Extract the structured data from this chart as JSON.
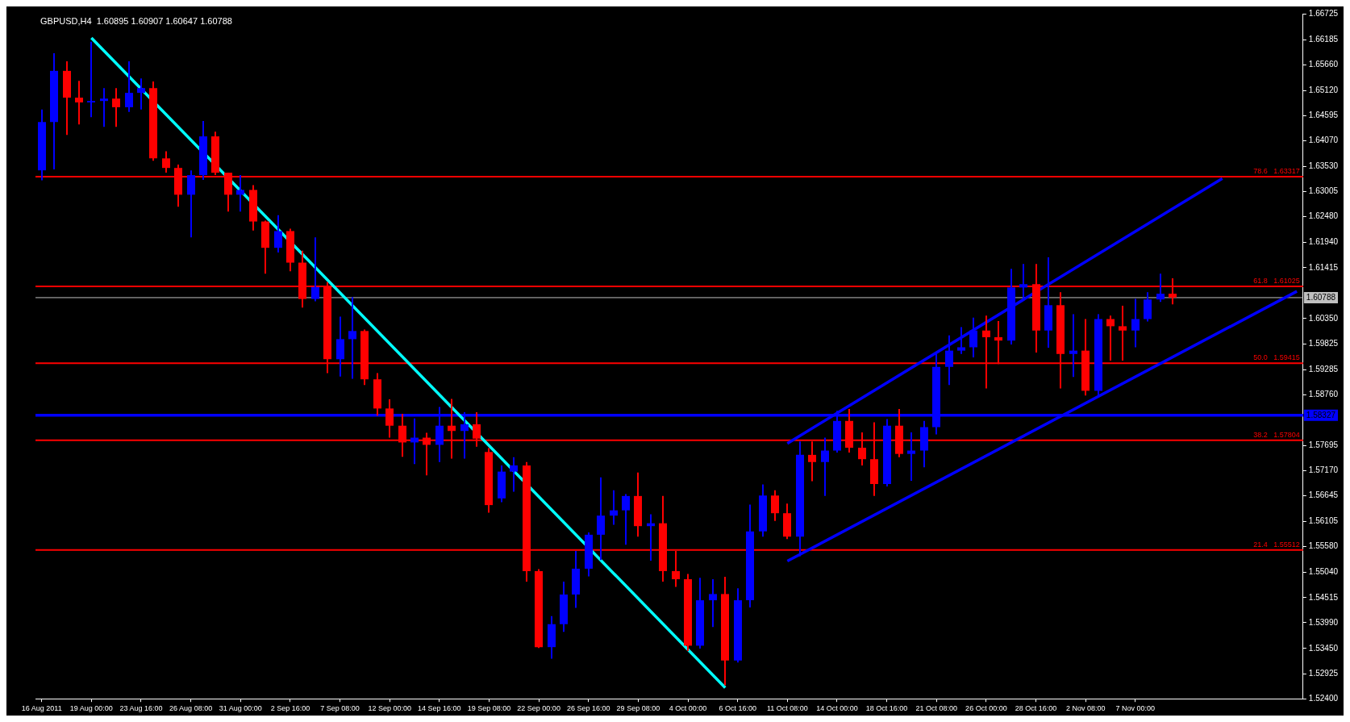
{
  "chart_data": {
    "type": "candlestick",
    "title": "GBPUSD,H4  1.60895 1.60907 1.60647 1.60788",
    "categories": [
      "16 Aug 2011",
      null,
      null,
      null,
      "19 Aug 00:00",
      null,
      null,
      null,
      "23 Aug 16:00",
      null,
      null,
      null,
      "26 Aug 08:00",
      null,
      null,
      null,
      "31 Aug 00:00",
      null,
      null,
      null,
      "2 Sep 16:00",
      null,
      null,
      null,
      "7 Sep 08:00",
      null,
      null,
      null,
      "12 Sep 00:00",
      null,
      null,
      null,
      "14 Sep 16:00",
      null,
      null,
      null,
      "19 Sep 08:00",
      null,
      null,
      null,
      "22 Sep 00:00",
      null,
      null,
      null,
      "26 Sep 16:00",
      null,
      null,
      null,
      "29 Sep 08:00",
      null,
      null,
      null,
      "4 Oct 00:00",
      null,
      null,
      null,
      "6 Oct 16:00",
      null,
      null,
      null,
      "11 Oct 08:00",
      null,
      null,
      null,
      "14 Oct 00:00",
      null,
      null,
      null,
      "18 Oct 16:00",
      null,
      null,
      null,
      "21 Oct 08:00",
      null,
      null,
      null,
      "26 Oct 00:00",
      null,
      null,
      null,
      "28 Oct 16:00",
      null,
      null,
      null,
      "2 Nov 08:00",
      null,
      null,
      null,
      "7 Nov 00:00",
      null,
      null,
      null,
      null,
      null,
      null,
      null,
      null,
      null,
      null,
      null,
      null,
      null
    ],
    "ohlc": [
      [
        1.6345,
        1.6472,
        1.6324,
        1.6446
      ],
      [
        1.6446,
        1.659,
        1.6347,
        1.6553
      ],
      [
        1.6553,
        1.6573,
        1.6419,
        1.6497
      ],
      [
        1.6497,
        1.6532,
        1.6441,
        1.6487
      ],
      [
        1.6487,
        1.6614,
        1.6456,
        1.649
      ],
      [
        1.649,
        1.6517,
        1.6436,
        1.6495
      ],
      [
        1.6495,
        1.6517,
        1.6436,
        1.6477
      ],
      [
        1.6477,
        1.6573,
        1.6467,
        1.6507
      ],
      [
        1.6507,
        1.6537,
        1.6472,
        1.6517
      ],
      [
        1.6517,
        1.6531,
        1.6365,
        1.637
      ],
      [
        1.637,
        1.6385,
        1.634,
        1.635
      ],
      [
        1.635,
        1.6357,
        1.6269,
        1.6294
      ],
      [
        1.6294,
        1.6345,
        1.6205,
        1.6335
      ],
      [
        1.6335,
        1.6448,
        1.6325,
        1.6416
      ],
      [
        1.6416,
        1.6426,
        1.6335,
        1.634
      ],
      [
        1.634,
        1.634,
        1.6259,
        1.6294
      ],
      [
        1.6294,
        1.6335,
        1.6259,
        1.6304
      ],
      [
        1.6304,
        1.6314,
        1.6219,
        1.6238
      ],
      [
        1.6238,
        1.624,
        1.6129,
        1.6183
      ],
      [
        1.6183,
        1.6251,
        1.6173,
        1.6218
      ],
      [
        1.6218,
        1.6223,
        1.6134,
        1.6152
      ],
      [
        1.6152,
        1.6177,
        1.6058,
        1.6076
      ],
      [
        1.6076,
        1.6205,
        1.6071,
        1.6101
      ],
      [
        1.6101,
        1.6111,
        1.5921,
        1.595
      ],
      [
        1.595,
        1.6039,
        1.5914,
        1.5992
      ],
      [
        1.5992,
        1.608,
        1.5909,
        1.6009
      ],
      [
        1.6009,
        1.6012,
        1.5896,
        1.5908
      ],
      [
        1.5908,
        1.5921,
        1.5832,
        1.5847
      ],
      [
        1.5847,
        1.5866,
        1.5786,
        1.5811
      ],
      [
        1.5811,
        1.5836,
        1.5746,
        1.5776
      ],
      [
        1.5776,
        1.5826,
        1.5731,
        1.5786
      ],
      [
        1.5786,
        1.5796,
        1.5707,
        1.5771
      ],
      [
        1.5771,
        1.585,
        1.5735,
        1.5811
      ],
      [
        1.5811,
        1.5867,
        1.5742,
        1.58
      ],
      [
        1.58,
        1.5839,
        1.5742,
        1.5814
      ],
      [
        1.5814,
        1.5839,
        1.5767,
        1.5784
      ],
      [
        1.5756,
        1.5764,
        1.5629,
        1.5645
      ],
      [
        1.5659,
        1.5728,
        1.5651,
        1.5715
      ],
      [
        1.5715,
        1.5745,
        1.5673,
        1.5728
      ],
      [
        1.5728,
        1.5735,
        1.5485,
        1.5507
      ],
      [
        1.5507,
        1.5511,
        1.5346,
        1.5348
      ],
      [
        1.5348,
        1.5413,
        1.5324,
        1.5396
      ],
      [
        1.5396,
        1.5485,
        1.538,
        1.5458
      ],
      [
        1.5458,
        1.5549,
        1.543,
        1.5512
      ],
      [
        1.5512,
        1.5588,
        1.5496,
        1.5583
      ],
      [
        1.5583,
        1.5703,
        1.553,
        1.5623
      ],
      [
        1.5623,
        1.5676,
        1.5604,
        1.5634
      ],
      [
        1.5634,
        1.5668,
        1.5562,
        1.5664
      ],
      [
        1.5664,
        1.5713,
        1.5579,
        1.5601
      ],
      [
        1.5601,
        1.5626,
        1.5529,
        1.5607
      ],
      [
        1.5607,
        1.5664,
        1.5485,
        1.5507
      ],
      [
        1.5507,
        1.5549,
        1.5474,
        1.549
      ],
      [
        1.549,
        1.5501,
        1.534,
        1.5351
      ],
      [
        1.5351,
        1.5493,
        1.5345,
        1.5446
      ],
      [
        1.5446,
        1.549,
        1.539,
        1.5459
      ],
      [
        1.5459,
        1.5495,
        1.5268,
        1.532
      ],
      [
        1.532,
        1.5471,
        1.5316,
        1.5446
      ],
      [
        1.5446,
        1.5646,
        1.5431,
        1.559
      ],
      [
        1.559,
        1.5688,
        1.5579,
        1.5665
      ],
      [
        1.5665,
        1.5676,
        1.5612,
        1.5628
      ],
      [
        1.5628,
        1.5648,
        1.5574,
        1.5579
      ],
      [
        1.5579,
        1.5778,
        1.5538,
        1.575
      ],
      [
        1.575,
        1.5778,
        1.5695,
        1.5735
      ],
      [
        1.5735,
        1.5786,
        1.5664,
        1.5759
      ],
      [
        1.5759,
        1.5842,
        1.5755,
        1.5821
      ],
      [
        1.5821,
        1.5846,
        1.5755,
        1.5765
      ],
      [
        1.5765,
        1.5797,
        1.5728,
        1.5741
      ],
      [
        1.5741,
        1.5818,
        1.5664,
        1.5689
      ],
      [
        1.5689,
        1.5825,
        1.5684,
        1.5811
      ],
      [
        1.5811,
        1.5846,
        1.5745,
        1.5752
      ],
      [
        1.5752,
        1.5797,
        1.5696,
        1.5759
      ],
      [
        1.5759,
        1.5821,
        1.5724,
        1.5808
      ],
      [
        1.5808,
        1.5961,
        1.5793,
        1.5934
      ],
      [
        1.5934,
        1.6,
        1.5896,
        1.5968
      ],
      [
        1.5968,
        1.6017,
        1.5961,
        1.5975
      ],
      [
        1.5975,
        1.6037,
        1.5954,
        1.601
      ],
      [
        1.601,
        1.6041,
        1.5889,
        1.5996
      ],
      [
        1.5996,
        1.603,
        1.594,
        1.5989
      ],
      [
        1.5989,
        1.6139,
        1.5981,
        1.61
      ],
      [
        1.61,
        1.6149,
        1.6073,
        1.6107
      ],
      [
        1.6107,
        1.6149,
        1.5964,
        1.601
      ],
      [
        1.601,
        1.6163,
        1.5974,
        1.6063
      ],
      [
        1.6063,
        1.609,
        1.5889,
        1.5961
      ],
      [
        1.5961,
        1.6044,
        1.5913,
        1.5968
      ],
      [
        1.5968,
        1.6034,
        1.5874,
        1.5884
      ],
      [
        1.5884,
        1.6044,
        1.5874,
        1.6034
      ],
      [
        1.6034,
        1.6041,
        1.5947,
        1.6019
      ],
      [
        1.6019,
        1.6062,
        1.5947,
        1.601
      ],
      [
        1.601,
        1.6076,
        1.5975,
        1.6034
      ],
      [
        1.6034,
        1.609,
        1.6029,
        1.6075
      ],
      [
        1.6075,
        1.6129,
        1.607,
        1.6087
      ],
      [
        1.6087,
        1.6119,
        1.6065,
        1.6079
      ],
      null,
      null,
      null,
      null,
      null,
      null,
      null,
      null,
      null,
      null
    ],
    "colors": [
      "#0000ff",
      "#0000ff",
      "#ff0000",
      "#ff0000",
      "#0000ff",
      "#0000ff",
      "#ff0000",
      "#0000ff",
      "#0000ff",
      "#ff0000",
      "#ff0000",
      "#ff0000",
      "#0000ff",
      "#0000ff",
      "#ff0000",
      "#ff0000",
      "#0000ff",
      "#ff0000",
      "#ff0000",
      "#0000ff",
      "#ff0000",
      "#ff0000",
      "#0000ff",
      "#ff0000",
      "#0000ff",
      "#0000ff",
      "#ff0000",
      "#ff0000",
      "#ff0000",
      "#ff0000",
      "#0000ff",
      "#ff0000",
      "#0000ff",
      "#ff0000",
      "#0000ff",
      "#ff0000",
      "#ff0000",
      "#0000ff",
      "#0000ff",
      "#ff0000",
      "#ff0000",
      "#0000ff",
      "#0000ff",
      "#0000ff",
      "#0000ff",
      "#0000ff",
      "#0000ff",
      "#0000ff",
      "#ff0000",
      "#0000ff",
      "#ff0000",
      "#ff0000",
      "#ff0000",
      "#0000ff",
      "#0000ff",
      "#ff0000",
      "#0000ff",
      "#0000ff",
      "#0000ff",
      "#ff0000",
      "#ff0000",
      "#0000ff",
      "#ff0000",
      "#0000ff",
      "#0000ff",
      "#ff0000",
      "#ff0000",
      "#ff0000",
      "#0000ff",
      "#ff0000",
      "#0000ff",
      "#0000ff",
      "#0000ff",
      "#0000ff",
      "#0000ff",
      "#0000ff",
      "#ff0000",
      "#ff0000",
      "#0000ff",
      "#0000ff",
      "#ff0000",
      "#0000ff",
      "#ff0000",
      "#0000ff",
      "#ff0000",
      "#0000ff",
      "#ff0000",
      "#ff0000",
      "#0000ff",
      "#0000ff",
      "#0000ff",
      "#ff0000",
      null,
      null,
      null,
      null,
      null,
      null,
      null,
      null,
      null,
      null
    ],
    "series": [
      {
        "type": "line",
        "color": "#00ffff",
        "values": [
          null,
          null,
          null,
          null,
          1.6622,
          null,
          null,
          null,
          null,
          null,
          null,
          null,
          null,
          null,
          null,
          null,
          null,
          null,
          null,
          null,
          null,
          null,
          null,
          null,
          null,
          null,
          null,
          null,
          null,
          null,
          null,
          null,
          null,
          null,
          null,
          null,
          null,
          null,
          null,
          null,
          null,
          null,
          null,
          null,
          null,
          null,
          null,
          null,
          null,
          null,
          null,
          null,
          null,
          null,
          null,
          1.5263,
          null,
          null,
          null,
          null,
          null,
          null,
          null,
          null,
          null,
          null,
          null,
          null,
          null,
          null,
          null,
          null,
          null,
          null,
          null,
          null,
          null,
          null,
          null,
          null,
          null,
          null,
          null,
          null,
          null,
          null,
          null,
          null,
          null,
          null,
          null,
          null,
          null,
          null,
          null,
          null,
          null,
          null,
          null,
          null,
          null,
          null
        ]
      },
      {
        "type": "line",
        "color": "#0000ff",
        "values": [
          null,
          null,
          null,
          null,
          null,
          null,
          null,
          null,
          null,
          null,
          null,
          null,
          null,
          null,
          null,
          null,
          null,
          null,
          null,
          null,
          null,
          null,
          null,
          null,
          null,
          null,
          null,
          null,
          null,
          null,
          null,
          null,
          null,
          null,
          null,
          null,
          null,
          null,
          null,
          null,
          null,
          null,
          null,
          null,
          null,
          null,
          null,
          null,
          null,
          null,
          null,
          null,
          null,
          null,
          null,
          null,
          null,
          null,
          null,
          null,
          1.5774,
          null,
          null,
          null,
          null,
          null,
          null,
          null,
          null,
          null,
          null,
          null,
          null,
          null,
          null,
          null,
          null,
          null,
          null,
          null,
          null,
          null,
          null,
          null,
          null,
          null,
          null,
          null,
          null,
          null,
          null,
          null,
          null,
          null,
          null,
          1.6328,
          null,
          null,
          null,
          null,
          null,
          null
        ]
      },
      {
        "type": "line",
        "color": "#0000ff",
        "values": [
          null,
          null,
          null,
          null,
          null,
          null,
          null,
          null,
          null,
          null,
          null,
          null,
          null,
          null,
          null,
          null,
          null,
          null,
          null,
          null,
          null,
          null,
          null,
          null,
          null,
          null,
          null,
          null,
          null,
          null,
          null,
          null,
          null,
          null,
          null,
          null,
          null,
          null,
          null,
          null,
          null,
          null,
          null,
          null,
          null,
          null,
          null,
          null,
          null,
          null,
          null,
          null,
          null,
          null,
          null,
          null,
          null,
          null,
          null,
          null,
          1.5528,
          null,
          null,
          null,
          null,
          null,
          null,
          null,
          null,
          null,
          null,
          null,
          null,
          null,
          null,
          null,
          null,
          null,
          null,
          null,
          null,
          null,
          null,
          null,
          null,
          null,
          null,
          null,
          null,
          null,
          null,
          null,
          null,
          null,
          null,
          null,
          null,
          null,
          null,
          null,
          null,
          1.6092
        ]
      }
    ],
    "ylim": [
      1.524,
      1.66725
    ],
    "yticks": [
      {
        "value": 1.66725,
        "label": "1.66725"
      },
      {
        "value": 1.66185,
        "label": "1.66185"
      },
      {
        "value": 1.6566,
        "label": "1.65660"
      },
      {
        "value": 1.6512,
        "label": "1.65120"
      },
      {
        "value": 1.64595,
        "label": "1.64595"
      },
      {
        "value": 1.6407,
        "label": "1.64070"
      },
      {
        "value": 1.6353,
        "label": "1.63530"
      },
      {
        "value": 1.63005,
        "label": "1.63005"
      },
      {
        "value": 1.6248,
        "label": "1.62480"
      },
      {
        "value": 1.6194,
        "label": "1.61940"
      },
      {
        "value": 1.61415,
        "label": "1.61415"
      },
      {
        "value": 1.6035,
        "label": "1.60350"
      },
      {
        "value": 1.59825,
        "label": "1.59825"
      },
      {
        "value": 1.59285,
        "label": "1.59285"
      },
      {
        "value": 1.5876,
        "label": "1.58760"
      },
      {
        "value": 1.57695,
        "label": "1.57695"
      },
      {
        "value": 1.5717,
        "label": "1.57170"
      },
      {
        "value": 1.56645,
        "label": "1.56645"
      },
      {
        "value": 1.56105,
        "label": "1.56105"
      },
      {
        "value": 1.5558,
        "label": "1.55580"
      },
      {
        "value": 1.5504,
        "label": "1.55040"
      },
      {
        "value": 1.54515,
        "label": "1.54515"
      },
      {
        "value": 1.5399,
        "label": "1.53990"
      },
      {
        "value": 1.5345,
        "label": "1.53450"
      },
      {
        "value": 1.52925,
        "label": "1.52925"
      },
      {
        "value": 1.524,
        "label": "1.52400"
      }
    ],
    "ref_lines": [
      {
        "axis": "y",
        "value": 1.63317,
        "color": "#ff0000"
      },
      {
        "axis": "y",
        "value": 1.61025,
        "color": "#ff0000"
      },
      {
        "axis": "y",
        "value": 1.59415,
        "color": "#ff0000"
      },
      {
        "axis": "y",
        "value": 1.57804,
        "color": "#ff0000"
      },
      {
        "axis": "y",
        "value": 1.55512,
        "color": "#ff0000"
      },
      {
        "axis": "y",
        "value": 1.58327,
        "color": "#0000ff",
        "label": "1.58327"
      },
      {
        "axis": "y",
        "value": 1.60788,
        "color": "#c0c0c0",
        "label": "1.60788"
      }
    ],
    "annotations": [
      {
        "text": "78.6   1.63317",
        "y": 1.63317
      },
      {
        "text": "61.8   1.61025",
        "y": 1.61025
      },
      {
        "text": "50.0   1.59415",
        "y": 1.59415
      },
      {
        "text": "38.2   1.57804",
        "y": 1.57804
      },
      {
        "text": "21.4   1.55512",
        "y": 1.55512
      }
    ],
    "legend": false
  }
}
